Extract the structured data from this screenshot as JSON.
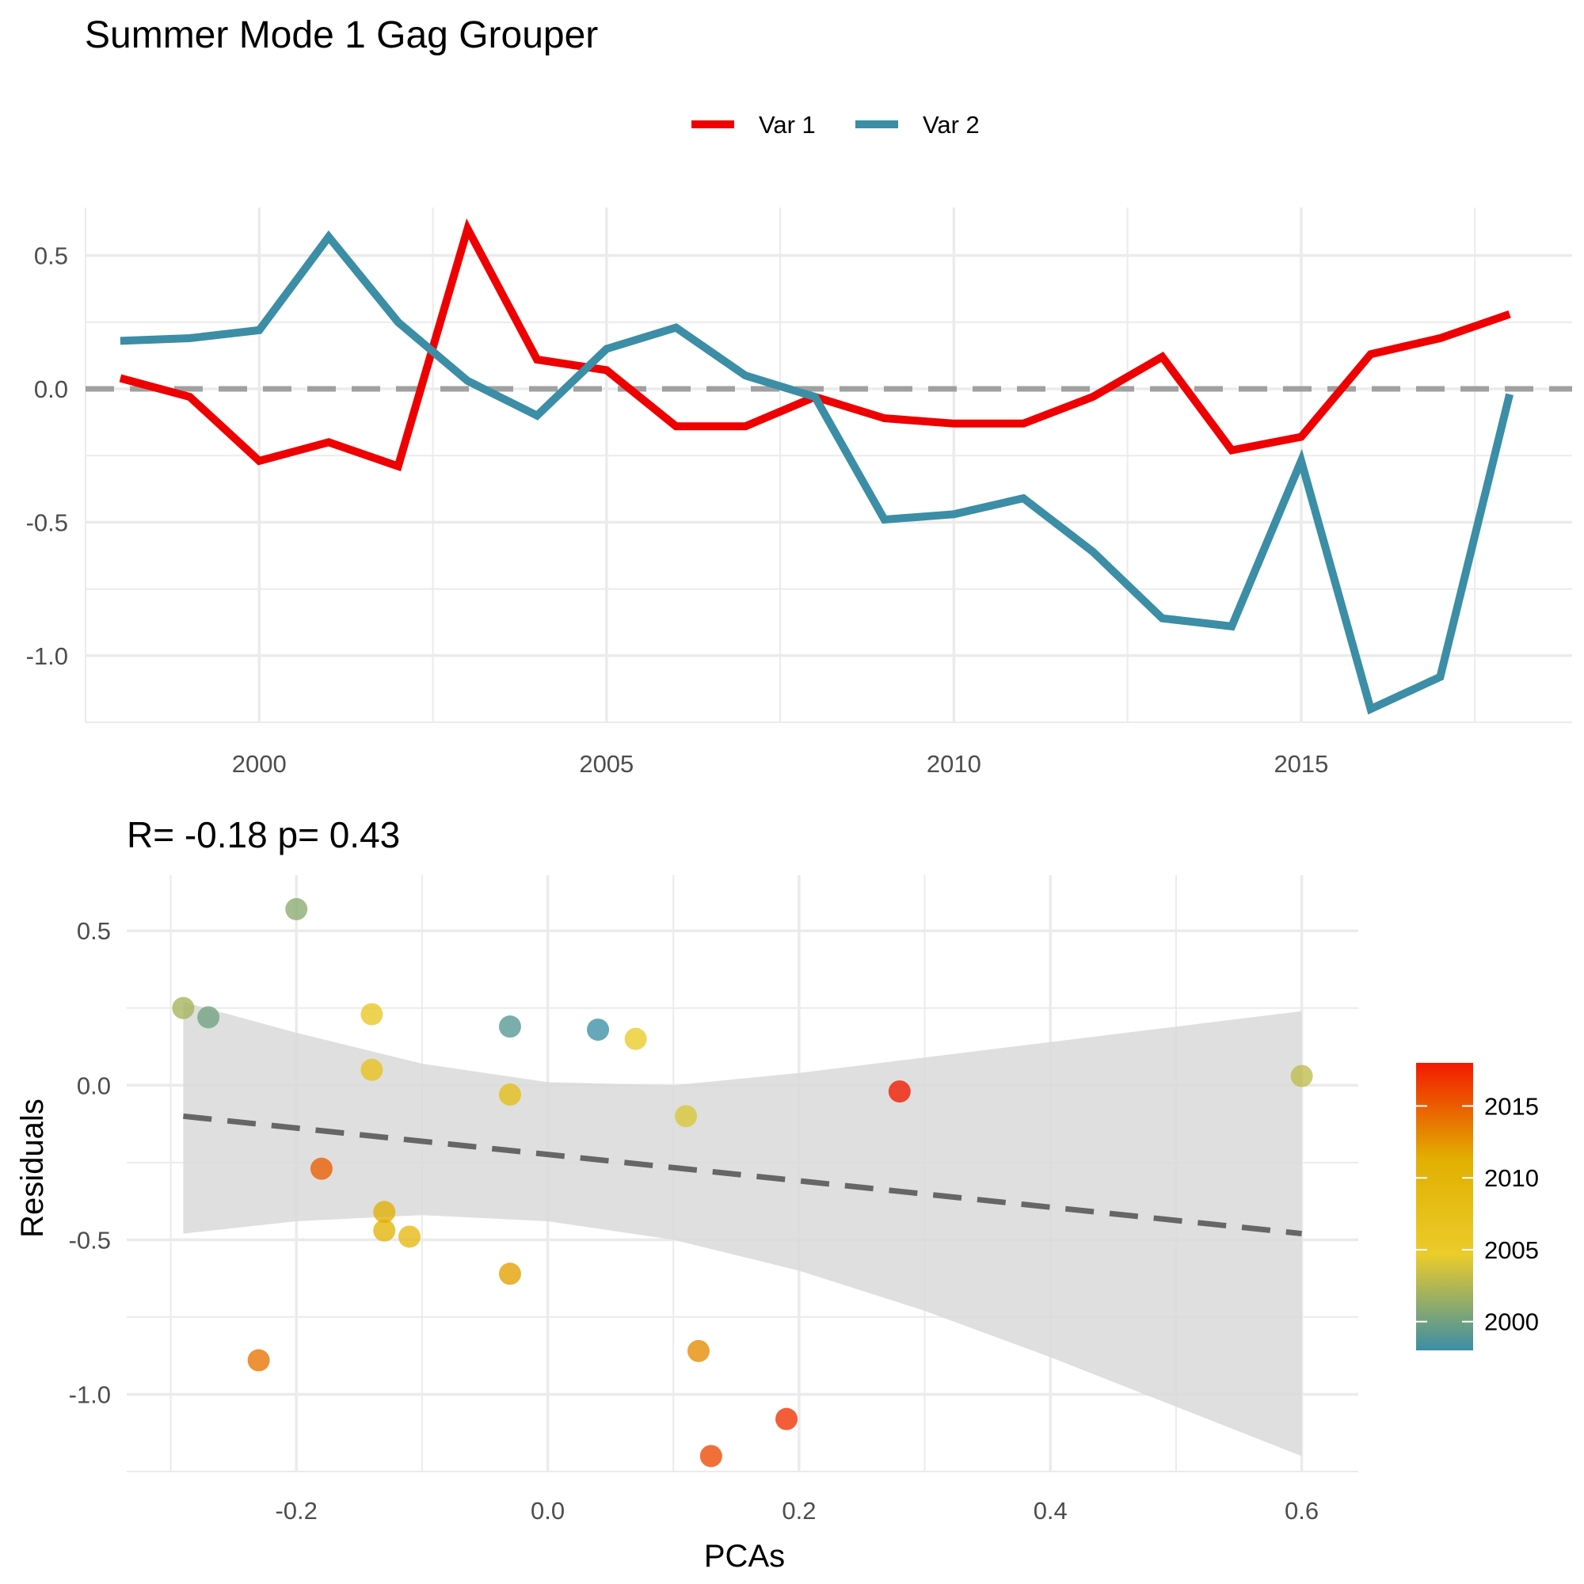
{
  "figure": {
    "title": "Summer Mode 1 Gag Grouper"
  },
  "colors": {
    "var1": "#EE0000",
    "var2": "#3B8EA5",
    "zero_line": "#A0A0A0",
    "grid": "#EBEBEB",
    "ribbon": "#D9D9D9",
    "fit_line": "#666666",
    "gradient": [
      "#3B8EA5",
      "#EBCC2A",
      "#E1AF00",
      "#F21A00"
    ]
  },
  "chart_data": [
    {
      "type": "line",
      "title": "",
      "partial_corner_text": "",
      "xlabel": "",
      "ylabel": "",
      "xlim": [
        1997.5,
        2018.9
      ],
      "ylim": [
        -1.25,
        0.68
      ],
      "x_ticks": [
        2000,
        2005,
        2010,
        2015
      ],
      "x_tick_labels": [
        "2000",
        "2005",
        "2010",
        "2015"
      ],
      "y_ticks": [
        0.5,
        0.0,
        -0.5,
        -1.0
      ],
      "y_tick_labels": [
        "0.5",
        "0.0",
        "-0.5",
        "-1.0"
      ],
      "grid": true,
      "legend_position": "top",
      "reference_line": 0,
      "x": [
        1998,
        1999,
        2000,
        2001,
        2002,
        2003,
        2004,
        2005,
        2006,
        2007,
        2008,
        2009,
        2010,
        2011,
        2012,
        2013,
        2014,
        2015,
        2016,
        2017,
        2018
      ],
      "series": [
        {
          "name": "Var 1",
          "values": [
            0.04,
            -0.03,
            -0.27,
            -0.2,
            -0.29,
            0.6,
            0.11,
            0.07,
            -0.14,
            -0.14,
            -0.03,
            -0.11,
            -0.13,
            -0.13,
            -0.03,
            0.12,
            -0.23,
            -0.18,
            0.13,
            0.19,
            0.28
          ]
        },
        {
          "name": "Var 2",
          "values": [
            0.18,
            0.19,
            0.22,
            0.57,
            0.25,
            0.03,
            -0.1,
            0.15,
            0.23,
            0.05,
            -0.03,
            -0.49,
            -0.47,
            -0.41,
            -0.61,
            -0.86,
            -0.89,
            -0.27,
            -1.2,
            -1.08,
            -0.02
          ]
        }
      ]
    },
    {
      "type": "scatter",
      "title": "R= -0.18  p= 0.43",
      "xlabel": "PCAs",
      "ylabel": "Residuals",
      "xlim": [
        -0.335,
        0.645
      ],
      "ylim": [
        -1.25,
        0.68
      ],
      "x_ticks": [
        -0.2,
        0.0,
        0.2,
        0.4,
        0.6
      ],
      "x_tick_labels": [
        "-0.2",
        "0.0",
        "0.2",
        "0.4",
        "0.6"
      ],
      "y_ticks": [
        0.5,
        0.0,
        -0.5,
        -1.0
      ],
      "y_tick_labels": [
        "0.5",
        "0.0",
        "-0.5",
        "-1.0"
      ],
      "grid": true,
      "legend_position": "right",
      "colorbar": {
        "min": 1998,
        "max": 2018,
        "ticks": [
          2000,
          2005,
          2010,
          2015
        ],
        "tick_labels": [
          "2000",
          "2005",
          "2010",
          "2015"
        ]
      },
      "points": [
        {
          "x": 0.04,
          "y": 0.18,
          "year": 1998
        },
        {
          "x": -0.03,
          "y": 0.19,
          "year": 1999
        },
        {
          "x": -0.27,
          "y": 0.22,
          "year": 2000
        },
        {
          "x": -0.2,
          "y": 0.57,
          "year": 2001
        },
        {
          "x": -0.29,
          "y": 0.25,
          "year": 2002
        },
        {
          "x": 0.6,
          "y": 0.03,
          "year": 2003
        },
        {
          "x": 0.11,
          "y": -0.1,
          "year": 2004
        },
        {
          "x": 0.07,
          "y": 0.15,
          "year": 2005
        },
        {
          "x": -0.14,
          "y": 0.23,
          "year": 2006
        },
        {
          "x": -0.14,
          "y": 0.05,
          "year": 2007
        },
        {
          "x": -0.03,
          "y": -0.03,
          "year": 2008
        },
        {
          "x": -0.11,
          "y": -0.49,
          "year": 2009
        },
        {
          "x": -0.13,
          "y": -0.47,
          "year": 2010
        },
        {
          "x": -0.13,
          "y": -0.41,
          "year": 2011
        },
        {
          "x": -0.03,
          "y": -0.61,
          "year": 2012
        },
        {
          "x": 0.12,
          "y": -0.86,
          "year": 2013
        },
        {
          "x": -0.23,
          "y": -0.89,
          "year": 2014
        },
        {
          "x": -0.18,
          "y": -0.27,
          "year": 2015
        },
        {
          "x": 0.13,
          "y": -1.2,
          "year": 2016
        },
        {
          "x": 0.19,
          "y": -1.08,
          "year": 2017
        },
        {
          "x": 0.28,
          "y": -0.02,
          "year": 2018
        }
      ],
      "fit_line": {
        "x": [
          -0.29,
          0.6
        ],
        "y": [
          -0.1,
          -0.48
        ]
      },
      "confidence_band": {
        "x": [
          -0.29,
          -0.2,
          -0.1,
          0.0,
          0.1,
          0.2,
          0.3,
          0.4,
          0.5,
          0.6
        ],
        "lower": [
          -0.48,
          -0.44,
          -0.42,
          -0.44,
          -0.5,
          -0.6,
          -0.73,
          -0.88,
          -1.04,
          -1.2
        ],
        "upper": [
          0.27,
          0.17,
          0.07,
          0.01,
          0.0,
          0.04,
          0.09,
          0.14,
          0.19,
          0.24
        ]
      }
    }
  ]
}
